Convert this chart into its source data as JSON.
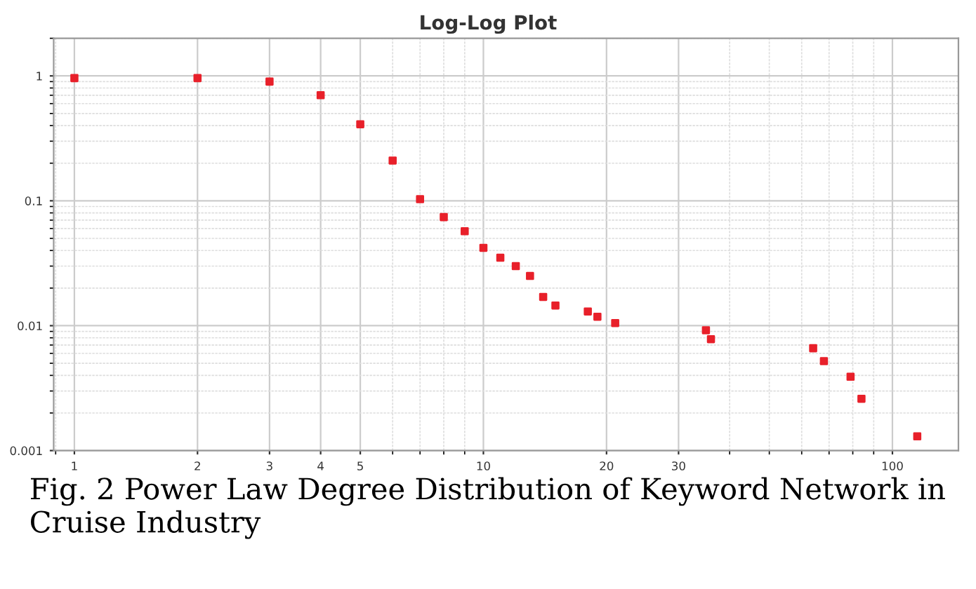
{
  "chart_data": {
    "type": "scatter",
    "title": "Log-Log Plot",
    "x": [
      1,
      2,
      3,
      4,
      5,
      6,
      7,
      8,
      9,
      10,
      11,
      12,
      13,
      14,
      15,
      18,
      19,
      21,
      35,
      36,
      64,
      68,
      79,
      84,
      115
    ],
    "series": [
      {
        "color": "#e8202a",
        "values": [
          0.96,
          0.96,
          0.9,
          0.7,
          0.41,
          0.21,
          0.103,
          0.074,
          0.057,
          0.042,
          0.035,
          0.03,
          0.025,
          0.017,
          0.0145,
          0.013,
          0.0118,
          0.0105,
          0.0092,
          0.0078,
          0.0066,
          0.0052,
          0.0039,
          0.0026,
          0.0013
        ]
      }
    ],
    "log": "xy",
    "xlim": [
      0.89,
      145
    ],
    "ylim": [
      0.001,
      2
    ],
    "xticks": [
      1,
      2,
      3,
      4,
      5,
      10,
      20,
      30,
      100
    ],
    "yticks": [
      0.001,
      0.01,
      0.1,
      1
    ],
    "grid": true,
    "marker": "square",
    "annotations": [
      "Fig. 2 Power Law Degree Distribution of Keyword Network in Cruise Industry"
    ]
  }
}
